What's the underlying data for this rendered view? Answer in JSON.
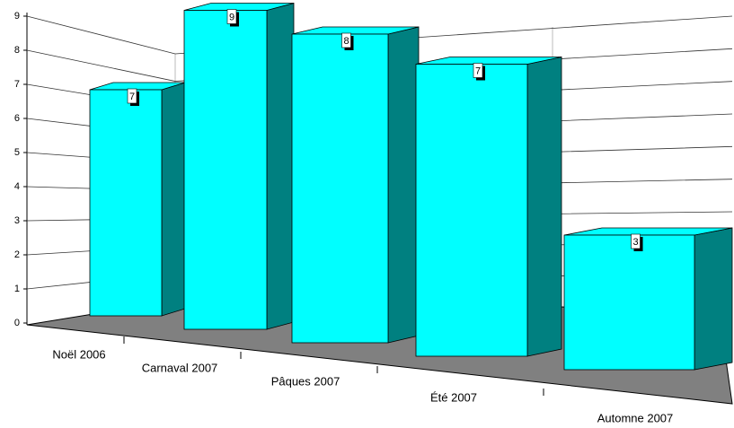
{
  "chart_data": {
    "type": "bar3d",
    "categories": [
      "Noël 2006",
      "Carnaval 2007",
      "Pâques 2007",
      "Été 2007",
      "Automne 2007"
    ],
    "values": [
      7,
      9,
      8,
      7,
      3
    ],
    "color": "#00ffff",
    "side_color": "#008080",
    "floor_color": "#808080",
    "ylim": [
      0,
      9
    ],
    "yticks": [
      0,
      1,
      2,
      3,
      4,
      5,
      6,
      7,
      8,
      9
    ],
    "grid": true
  }
}
